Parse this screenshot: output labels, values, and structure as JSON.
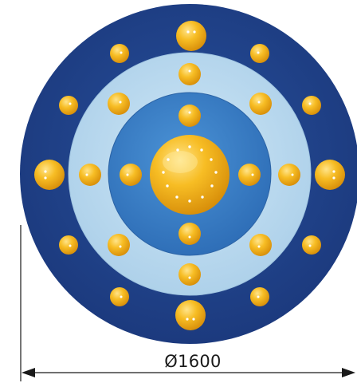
{
  "dimension": {
    "label": "Ø1600"
  },
  "colors": {
    "outer_ring": "#1f3f86",
    "middle_ring": "#b9d9ef",
    "inner_disc": "#3e82c8",
    "ball": "#f6b81c",
    "dimension_line": "#1a1a1a"
  }
}
